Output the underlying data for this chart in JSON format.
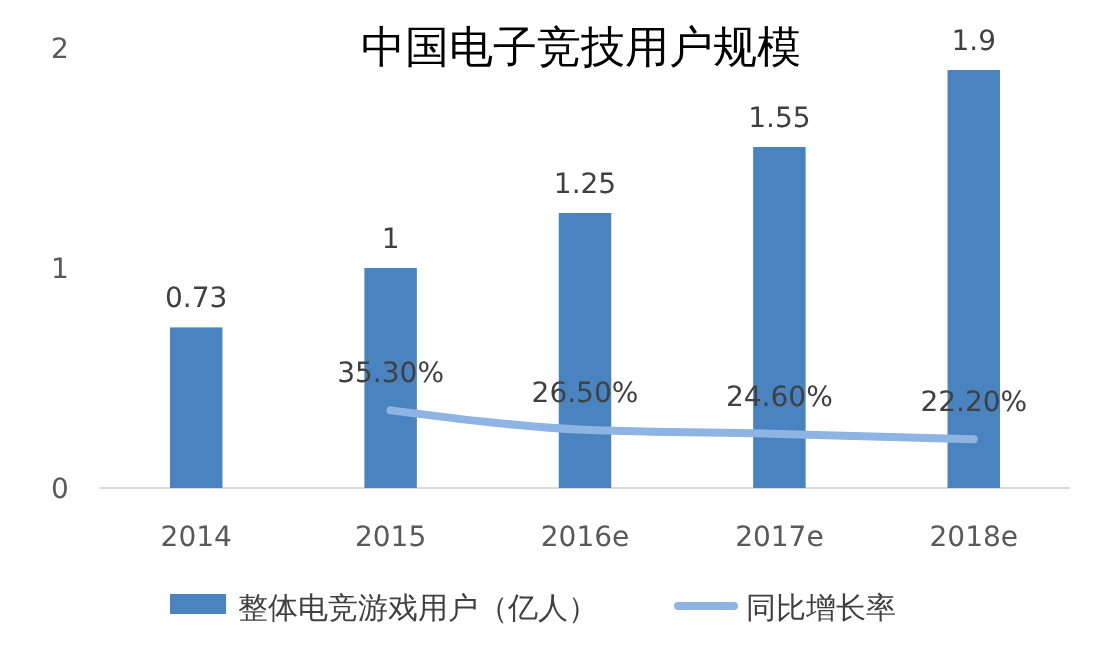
{
  "chart_data": {
    "type": "bar",
    "title": "中国电子竞技用户规模",
    "categories": [
      "2014",
      "2015",
      "2016e",
      "2017e",
      "2018e"
    ],
    "series": [
      {
        "name": "整体电竞游戏用户（亿人）",
        "color": "#4a84c0",
        "values": [
          0.73,
          1,
          1.25,
          1.55,
          1.9
        ],
        "value_labels": [
          "0.73",
          "1",
          "1.25",
          "1.55",
          "1.9"
        ]
      },
      {
        "name": "同比增长率",
        "type": "line",
        "color": "#8db4e2",
        "values": [
          null,
          0.353,
          0.265,
          0.246,
          0.222
        ],
        "value_labels": [
          null,
          "35.30%",
          "26.50%",
          "24.60%",
          "22.20%"
        ]
      }
    ],
    "ylim": [
      0,
      2
    ],
    "yticks": [
      0,
      1,
      2
    ],
    "grid": false,
    "legend": "bottom",
    "marker": "none"
  }
}
